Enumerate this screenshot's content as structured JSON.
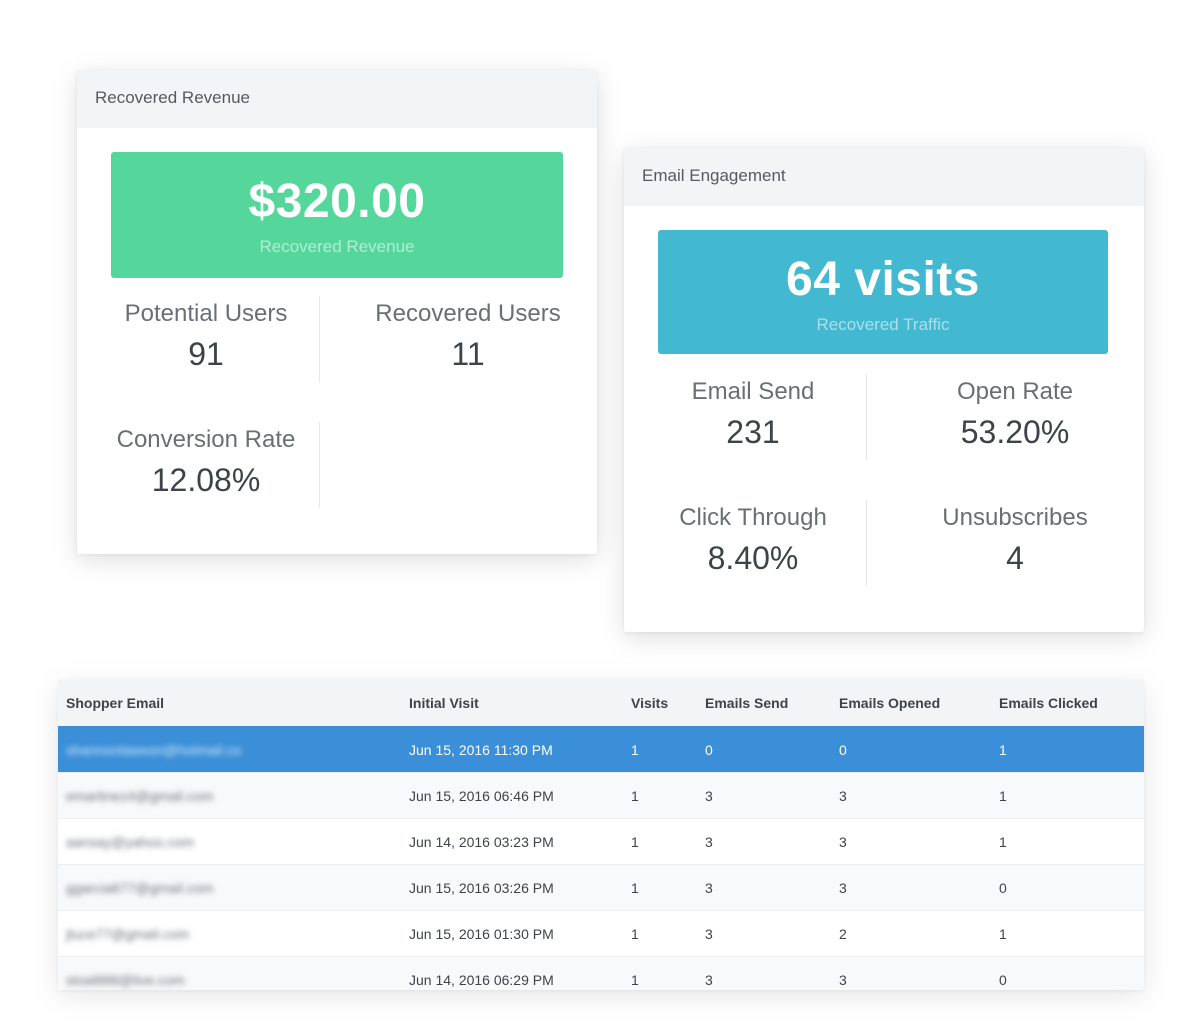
{
  "revenue_card": {
    "title": "Recovered Revenue",
    "hero_value": "$320.00",
    "hero_label": "Recovered Revenue",
    "hero_color": "#55d69b",
    "stats": [
      {
        "label": "Potential Users",
        "value": "91"
      },
      {
        "label": "Recovered Users",
        "value": "11"
      },
      {
        "label": "Conversion Rate",
        "value": "12.08%"
      }
    ]
  },
  "engagement_card": {
    "title": "Email Engagement",
    "hero_value": "64 visits",
    "hero_label": "Recovered Traffic",
    "hero_color": "#43b8d1",
    "stats": [
      {
        "label": "Email Send",
        "value": "231"
      },
      {
        "label": "Open Rate",
        "value": "53.20%"
      },
      {
        "label": "Click Through",
        "value": "8.40%"
      },
      {
        "label": "Unsubscribes",
        "value": "4"
      }
    ]
  },
  "table": {
    "columns": [
      "Shopper Email",
      "Initial Visit",
      "Visits",
      "Emails Send",
      "Emails Opened",
      "Emails Clicked"
    ],
    "selected_row_color": "#3a8fd8",
    "rows": [
      {
        "email": "shannonlawson@hotmail.co",
        "initial_visit": "Jun 15, 2016 11:30 PM",
        "visits": "1",
        "emails_send": "0",
        "emails_opened": "0",
        "emails_clicked": "1"
      },
      {
        "email": "emartinez4@gmail.com",
        "initial_visit": "Jun 15, 2016 06:46 PM",
        "visits": "1",
        "emails_send": "3",
        "emails_opened": "3",
        "emails_clicked": "1"
      },
      {
        "email": "aansay@yahoo.com",
        "initial_visit": "Jun 14, 2016 03:23 PM",
        "visits": "1",
        "emails_send": "3",
        "emails_opened": "3",
        "emails_clicked": "1"
      },
      {
        "email": "ggarcia877@gmail.com",
        "initial_visit": "Jun 15, 2016 03:26 PM",
        "visits": "1",
        "emails_send": "3",
        "emails_opened": "3",
        "emails_clicked": "0"
      },
      {
        "email": "jtuce77@gmail.com",
        "initial_visit": "Jun 15, 2016 01:30 PM",
        "visits": "1",
        "emails_send": "3",
        "emails_opened": "2",
        "emails_clicked": "1"
      },
      {
        "email": "stoal888@live.com",
        "initial_visit": "Jun 14, 2016 06:29 PM",
        "visits": "1",
        "emails_send": "3",
        "emails_opened": "3",
        "emails_clicked": "0"
      }
    ]
  }
}
